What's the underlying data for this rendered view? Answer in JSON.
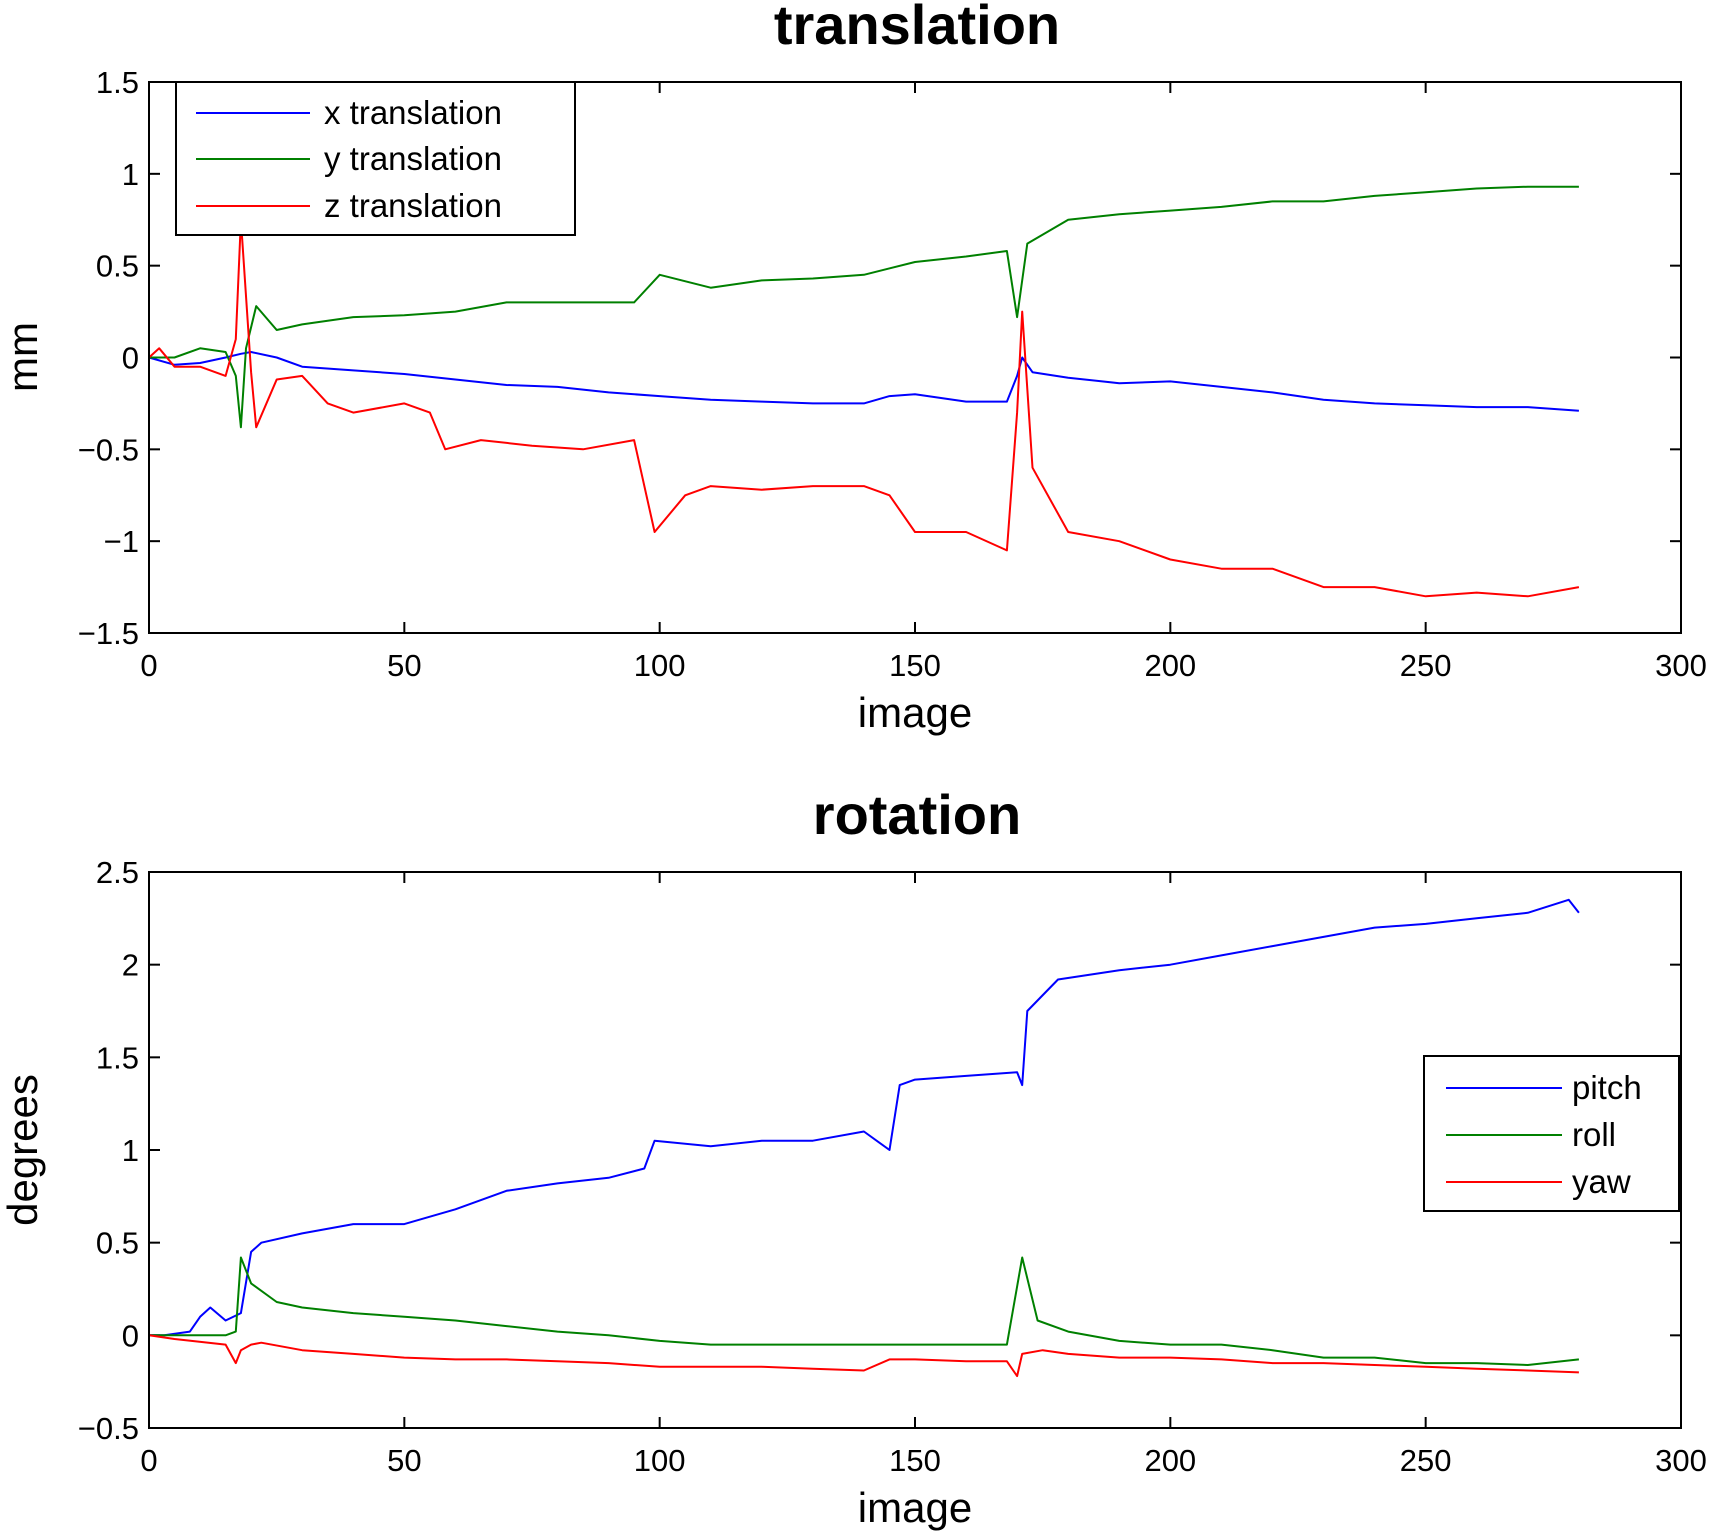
{
  "chart_data": [
    {
      "type": "line",
      "title": "translation",
      "xlabel": "image",
      "ylabel": "mm",
      "xlim": [
        0,
        300
      ],
      "ylim": [
        -1.5,
        1.5
      ],
      "xticks": [
        0,
        50,
        100,
        150,
        200,
        250,
        300
      ],
      "xtick_labels": [
        "0",
        "50",
        "100",
        "150",
        "200",
        "250",
        "300"
      ],
      "yticks": [
        -1.5,
        -1,
        -0.5,
        0,
        0.5,
        1,
        1.5
      ],
      "ytick_labels": [
        "−1.5",
        "−1",
        "−0.5",
        "0",
        "0.5",
        "1",
        "1.5"
      ],
      "grid": false,
      "legend_position": "top-left",
      "series": [
        {
          "name": "x translation",
          "color": "#0000ff",
          "points": [
            [
              0,
              0
            ],
            [
              5,
              -0.04
            ],
            [
              10,
              -0.03
            ],
            [
              15,
              0.0
            ],
            [
              18,
              0.02
            ],
            [
              20,
              0.03
            ],
            [
              25,
              0.0
            ],
            [
              30,
              -0.05
            ],
            [
              40,
              -0.07
            ],
            [
              50,
              -0.09
            ],
            [
              60,
              -0.12
            ],
            [
              70,
              -0.15
            ],
            [
              80,
              -0.16
            ],
            [
              90,
              -0.19
            ],
            [
              100,
              -0.21
            ],
            [
              110,
              -0.23
            ],
            [
              120,
              -0.24
            ],
            [
              130,
              -0.25
            ],
            [
              140,
              -0.25
            ],
            [
              145,
              -0.21
            ],
            [
              150,
              -0.2
            ],
            [
              160,
              -0.24
            ],
            [
              168,
              -0.24
            ],
            [
              170,
              -0.1
            ],
            [
              171,
              0.0
            ],
            [
              173,
              -0.08
            ],
            [
              180,
              -0.11
            ],
            [
              190,
              -0.14
            ],
            [
              200,
              -0.13
            ],
            [
              210,
              -0.16
            ],
            [
              220,
              -0.19
            ],
            [
              230,
              -0.23
            ],
            [
              240,
              -0.25
            ],
            [
              250,
              -0.26
            ],
            [
              260,
              -0.27
            ],
            [
              270,
              -0.27
            ],
            [
              280,
              -0.29
            ]
          ]
        },
        {
          "name": "y translation",
          "color": "#008000",
          "points": [
            [
              0,
              0
            ],
            [
              5,
              0.0
            ],
            [
              10,
              0.05
            ],
            [
              15,
              0.03
            ],
            [
              17,
              -0.1
            ],
            [
              18,
              -0.38
            ],
            [
              19,
              0.05
            ],
            [
              21,
              0.28
            ],
            [
              25,
              0.15
            ],
            [
              30,
              0.18
            ],
            [
              35,
              0.2
            ],
            [
              40,
              0.22
            ],
            [
              50,
              0.23
            ],
            [
              60,
              0.25
            ],
            [
              70,
              0.3
            ],
            [
              80,
              0.3
            ],
            [
              90,
              0.3
            ],
            [
              95,
              0.3
            ],
            [
              100,
              0.45
            ],
            [
              110,
              0.38
            ],
            [
              120,
              0.42
            ],
            [
              130,
              0.43
            ],
            [
              140,
              0.45
            ],
            [
              150,
              0.52
            ],
            [
              160,
              0.55
            ],
            [
              168,
              0.58
            ],
            [
              170,
              0.22
            ],
            [
              172,
              0.62
            ],
            [
              180,
              0.75
            ],
            [
              190,
              0.78
            ],
            [
              200,
              0.8
            ],
            [
              210,
              0.82
            ],
            [
              220,
              0.85
            ],
            [
              230,
              0.85
            ],
            [
              240,
              0.88
            ],
            [
              250,
              0.9
            ],
            [
              260,
              0.92
            ],
            [
              270,
              0.93
            ],
            [
              280,
              0.93
            ]
          ]
        },
        {
          "name": "z translation",
          "color": "#ff0000",
          "points": [
            [
              0,
              0
            ],
            [
              2,
              0.05
            ],
            [
              5,
              -0.05
            ],
            [
              10,
              -0.05
            ],
            [
              15,
              -0.1
            ],
            [
              17,
              0.1
            ],
            [
              18,
              0.75
            ],
            [
              20,
              -0.08
            ],
            [
              21,
              -0.38
            ],
            [
              25,
              -0.12
            ],
            [
              30,
              -0.1
            ],
            [
              35,
              -0.25
            ],
            [
              40,
              -0.3
            ],
            [
              50,
              -0.25
            ],
            [
              55,
              -0.3
            ],
            [
              58,
              -0.5
            ],
            [
              65,
              -0.45
            ],
            [
              75,
              -0.48
            ],
            [
              85,
              -0.5
            ],
            [
              95,
              -0.45
            ],
            [
              99,
              -0.95
            ],
            [
              105,
              -0.75
            ],
            [
              110,
              -0.7
            ],
            [
              120,
              -0.72
            ],
            [
              130,
              -0.7
            ],
            [
              140,
              -0.7
            ],
            [
              145,
              -0.75
            ],
            [
              150,
              -0.95
            ],
            [
              160,
              -0.95
            ],
            [
              168,
              -1.05
            ],
            [
              170,
              -0.3
            ],
            [
              171,
              0.25
            ],
            [
              173,
              -0.6
            ],
            [
              180,
              -0.95
            ],
            [
              190,
              -1.0
            ],
            [
              200,
              -1.1
            ],
            [
              210,
              -1.15
            ],
            [
              220,
              -1.15
            ],
            [
              230,
              -1.25
            ],
            [
              240,
              -1.25
            ],
            [
              250,
              -1.3
            ],
            [
              260,
              -1.28
            ],
            [
              270,
              -1.3
            ],
            [
              280,
              -1.25
            ]
          ]
        }
      ]
    },
    {
      "type": "line",
      "title": "rotation",
      "xlabel": "image",
      "ylabel": "degrees",
      "xlim": [
        0,
        300
      ],
      "ylim": [
        -0.5,
        2.5
      ],
      "xticks": [
        0,
        50,
        100,
        150,
        200,
        250,
        300
      ],
      "xtick_labels": [
        "0",
        "50",
        "100",
        "150",
        "200",
        "250",
        "300"
      ],
      "yticks": [
        -0.5,
        0,
        0.5,
        1,
        1.5,
        2,
        2.5
      ],
      "ytick_labels": [
        "−0.5",
        "0",
        "0.5",
        "1",
        "1.5",
        "2",
        "2.5"
      ],
      "grid": false,
      "legend_position": "center-right",
      "series": [
        {
          "name": "pitch",
          "color": "#0000ff",
          "points": [
            [
              0,
              0
            ],
            [
              3,
              0.0
            ],
            [
              8,
              0.02
            ],
            [
              10,
              0.1
            ],
            [
              12,
              0.15
            ],
            [
              15,
              0.08
            ],
            [
              18,
              0.12
            ],
            [
              20,
              0.45
            ],
            [
              22,
              0.5
            ],
            [
              30,
              0.55
            ],
            [
              40,
              0.6
            ],
            [
              50,
              0.6
            ],
            [
              60,
              0.68
            ],
            [
              70,
              0.78
            ],
            [
              80,
              0.82
            ],
            [
              90,
              0.85
            ],
            [
              97,
              0.9
            ],
            [
              99,
              1.05
            ],
            [
              110,
              1.02
            ],
            [
              120,
              1.05
            ],
            [
              130,
              1.05
            ],
            [
              140,
              1.1
            ],
            [
              145,
              1.0
            ],
            [
              147,
              1.35
            ],
            [
              150,
              1.38
            ],
            [
              160,
              1.4
            ],
            [
              170,
              1.42
            ],
            [
              171,
              1.35
            ],
            [
              172,
              1.75
            ],
            [
              178,
              1.92
            ],
            [
              190,
              1.97
            ],
            [
              200,
              2.0
            ],
            [
              210,
              2.05
            ],
            [
              220,
              2.1
            ],
            [
              230,
              2.15
            ],
            [
              240,
              2.2
            ],
            [
              250,
              2.22
            ],
            [
              260,
              2.25
            ],
            [
              270,
              2.28
            ],
            [
              278,
              2.35
            ],
            [
              280,
              2.28
            ]
          ]
        },
        {
          "name": "roll",
          "color": "#008000",
          "points": [
            [
              0,
              0
            ],
            [
              10,
              0.0
            ],
            [
              15,
              0.0
            ],
            [
              17,
              0.02
            ],
            [
              18,
              0.42
            ],
            [
              20,
              0.28
            ],
            [
              25,
              0.18
            ],
            [
              30,
              0.15
            ],
            [
              40,
              0.12
            ],
            [
              50,
              0.1
            ],
            [
              60,
              0.08
            ],
            [
              70,
              0.05
            ],
            [
              80,
              0.02
            ],
            [
              90,
              0.0
            ],
            [
              100,
              -0.03
            ],
            [
              110,
              -0.05
            ],
            [
              120,
              -0.05
            ],
            [
              130,
              -0.05
            ],
            [
              140,
              -0.05
            ],
            [
              150,
              -0.05
            ],
            [
              160,
              -0.05
            ],
            [
              168,
              -0.05
            ],
            [
              171,
              0.42
            ],
            [
              174,
              0.08
            ],
            [
              180,
              0.02
            ],
            [
              190,
              -0.03
            ],
            [
              200,
              -0.05
            ],
            [
              210,
              -0.05
            ],
            [
              220,
              -0.08
            ],
            [
              230,
              -0.12
            ],
            [
              240,
              -0.12
            ],
            [
              250,
              -0.15
            ],
            [
              260,
              -0.15
            ],
            [
              270,
              -0.16
            ],
            [
              280,
              -0.13
            ]
          ]
        },
        {
          "name": "yaw",
          "color": "#ff0000",
          "points": [
            [
              0,
              0
            ],
            [
              5,
              -0.02
            ],
            [
              15,
              -0.05
            ],
            [
              17,
              -0.15
            ],
            [
              18,
              -0.08
            ],
            [
              20,
              -0.05
            ],
            [
              22,
              -0.04
            ],
            [
              30,
              -0.08
            ],
            [
              40,
              -0.1
            ],
            [
              50,
              -0.12
            ],
            [
              60,
              -0.13
            ],
            [
              70,
              -0.13
            ],
            [
              80,
              -0.14
            ],
            [
              90,
              -0.15
            ],
            [
              100,
              -0.17
            ],
            [
              110,
              -0.17
            ],
            [
              120,
              -0.17
            ],
            [
              130,
              -0.18
            ],
            [
              140,
              -0.19
            ],
            [
              145,
              -0.13
            ],
            [
              150,
              -0.13
            ],
            [
              160,
              -0.14
            ],
            [
              168,
              -0.14
            ],
            [
              170,
              -0.22
            ],
            [
              171,
              -0.1
            ],
            [
              175,
              -0.08
            ],
            [
              180,
              -0.1
            ],
            [
              190,
              -0.12
            ],
            [
              200,
              -0.12
            ],
            [
              210,
              -0.13
            ],
            [
              220,
              -0.15
            ],
            [
              230,
              -0.15
            ],
            [
              240,
              -0.16
            ],
            [
              250,
              -0.17
            ],
            [
              260,
              -0.18
            ],
            [
              270,
              -0.19
            ],
            [
              280,
              -0.2
            ]
          ]
        }
      ]
    }
  ]
}
